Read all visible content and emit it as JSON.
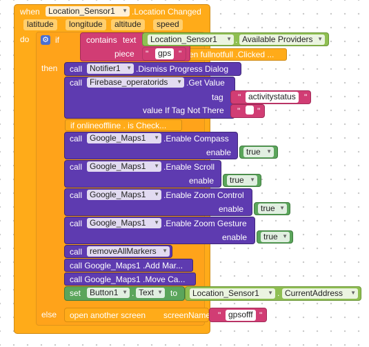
{
  "event": {
    "when_label": "when",
    "component": "Location_Sensor1",
    "event_name": ".Location Changed",
    "params": [
      "latitude",
      "longitude",
      "altitude",
      "speed"
    ],
    "do_label": "do"
  },
  "if_block": {
    "if_label": "if",
    "then_label": "then",
    "else_label": "else",
    "contains_label": "contains",
    "text_label": "text",
    "piece_label": "piece",
    "piece_value": "gps",
    "text_component": "Location_Sensor1",
    "text_property": "Available Providers",
    "hidden_event_text": "en fullnotfull .Clicked ..."
  },
  "statements": {
    "dismiss": {
      "call": "call",
      "component": "Notifier1",
      "method": ".Dismiss Progress Dialog"
    },
    "firebase": {
      "call": "call",
      "component": "Firebase_operatorids",
      "method": ".Get Value",
      "tag_label": "tag",
      "tag_value": "activitystatus",
      "default_label": "value If Tag Not There",
      "default_value": ""
    },
    "collapsed_check": "if onlineoffline . is Check...",
    "compass": {
      "call": "call",
      "component": "Google_Maps1",
      "method": ".Enable Compass",
      "enable_label": "enable",
      "value": "true"
    },
    "scroll": {
      "call": "call",
      "component": "Google_Maps1",
      "method": ".Enable Scroll",
      "enable_label": "enable",
      "value": "true"
    },
    "zoom_control": {
      "call": "call",
      "component": "Google_Maps1",
      "method": ".Enable Zoom Control",
      "enable_label": "enable",
      "value": "true"
    },
    "zoom_gesture": {
      "call": "call",
      "component": "Google_Maps1",
      "method": ".Enable Zoom Gesture",
      "enable_label": "enable",
      "value": "true"
    },
    "remove_markers": {
      "call": "call",
      "procedure": "removeAllMarkers"
    },
    "add_marker": "call Google_Maps1 .Add Mar...",
    "move_camera": "call Google_Maps1 .Move Ca...",
    "set_text": {
      "set_label": "set",
      "component": "Button1",
      "property": "Text",
      "to_label": "to",
      "value_component": "Location_Sensor1",
      "value_property": "CurrentAddress"
    },
    "open_screen": {
      "label": "open another screen",
      "screen_label": "screenName",
      "screen_value": "gpsofff"
    }
  },
  "colors": {
    "event": "#ffab19",
    "component_method": "#5e3bb0",
    "setter": "#5ba55b",
    "text": "#d13d74",
    "logic": "#8fbf52"
  }
}
